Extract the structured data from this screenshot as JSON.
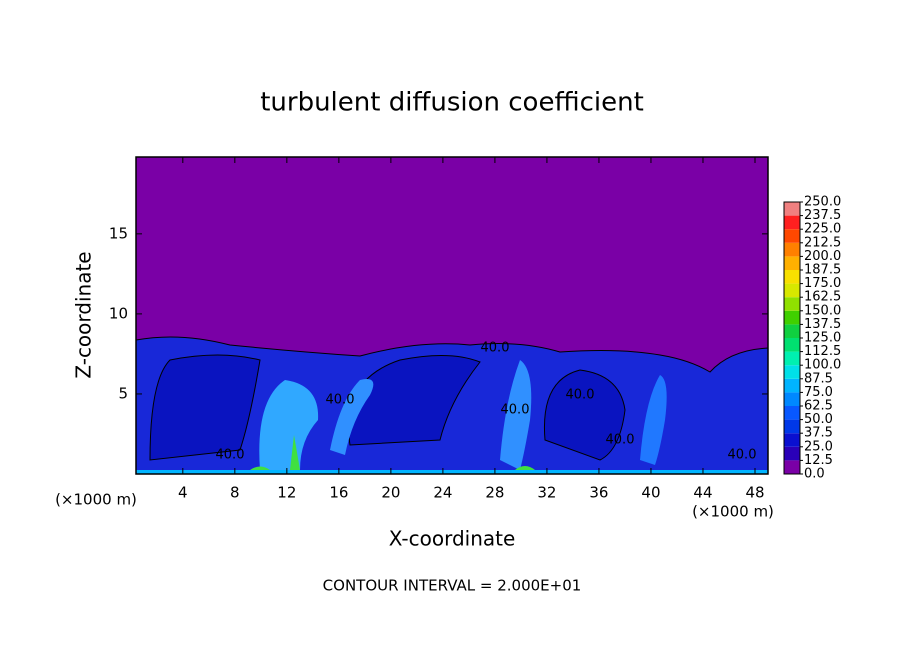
{
  "chart_data": {
    "type": "contour",
    "title": "turbulent diffusion coefficient",
    "x_label": "X-coordinate",
    "y_label": "Z-coordinate",
    "x_unit_labels": [
      "(×1000 m)",
      "(×1000 m)"
    ],
    "xlim": [
      0.4,
      49
    ],
    "ylim": [
      0,
      19.8
    ],
    "xticks": [
      4,
      8,
      12,
      16,
      20,
      24,
      28,
      32,
      36,
      40,
      44,
      48
    ],
    "yticks": [
      5,
      10,
      15
    ],
    "annotation": "CONTOUR INTERVAL = 2.000E+01",
    "contour_labels": [
      "40.0",
      "40.0",
      "40.0",
      "40.0",
      "40.0",
      "40.0",
      "40.0"
    ],
    "colorbar": {
      "levels": [
        {
          "value": 0,
          "label": "0.0"
        },
        12.5,
        {
          "value": 25,
          "label": "25.0"
        },
        37.5,
        {
          "value": 50,
          "label": "50.0"
        },
        62.5,
        {
          "value": 75,
          "label": "75.0"
        },
        87.5,
        {
          "value": 100,
          "label": "100.0"
        },
        112.5,
        {
          "value": 125,
          "label": "125.0"
        },
        137.5,
        {
          "value": 150,
          "label": "150.0"
        },
        162.5,
        {
          "value": 175,
          "label": "175.0"
        },
        187.5,
        {
          "value": 200,
          "label": "200.0"
        },
        212.5,
        {
          "value": 225,
          "label": "225.0"
        },
        237.5,
        {
          "value": 250,
          "label": "250.0"
        }
      ],
      "colors": [
        "#7a00a6",
        "#2a00b8",
        "#0a10d0",
        "#0038e8",
        "#0858ff",
        "#0088ff",
        "#00b4ff",
        "#00e0e8",
        "#00f0b0",
        "#00e070",
        "#10d040",
        "#40d000",
        "#90e000",
        "#d8e800",
        "#f8e000",
        "#ffb000",
        "#ff8000",
        "#ff4800",
        "#ff2020",
        "#f08080"
      ]
    }
  }
}
